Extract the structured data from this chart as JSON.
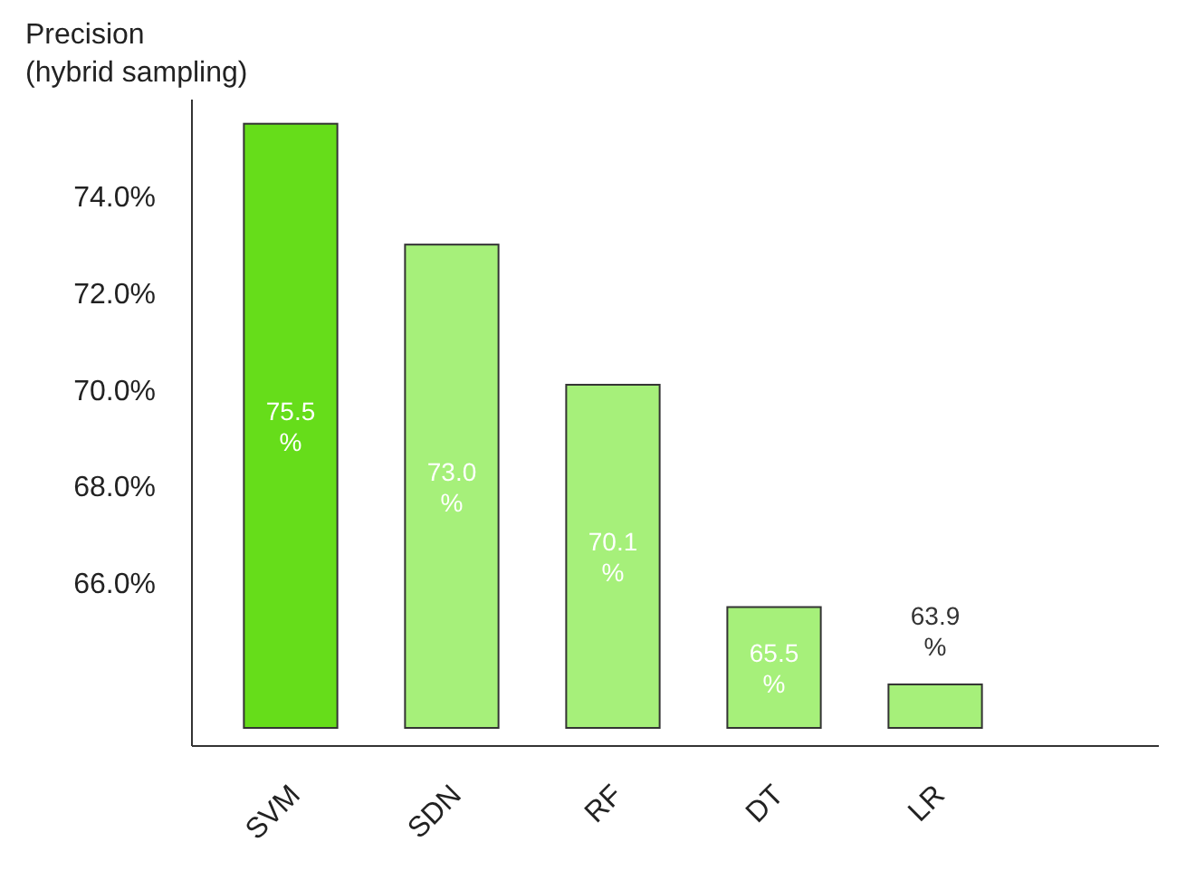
{
  "chart_data": {
    "type": "bar",
    "ylabel": "Precision\n(hybrid sampling)",
    "categories": [
      "SVM",
      "SDN",
      "RF",
      "DT",
      "LR"
    ],
    "values": [
      75.5,
      73.0,
      70.1,
      65.5,
      63.9
    ],
    "colors": [
      "#66dd1a",
      "#a6f07a",
      "#a6f07a",
      "#a6f07a",
      "#a6f07a"
    ],
    "value_labels": [
      "75.5 %",
      "73.0 %",
      "70.1 %",
      "65.5 %",
      "63.9 %"
    ],
    "ylim": [
      63,
      76
    ],
    "yticks": [
      {
        "value": 66,
        "label": "66.0%"
      },
      {
        "value": 68,
        "label": "68.0%"
      },
      {
        "value": 70,
        "label": "70.0%"
      },
      {
        "value": 72,
        "label": "72.0%"
      },
      {
        "value": 74,
        "label": "74.0%"
      }
    ],
    "grid": false
  }
}
